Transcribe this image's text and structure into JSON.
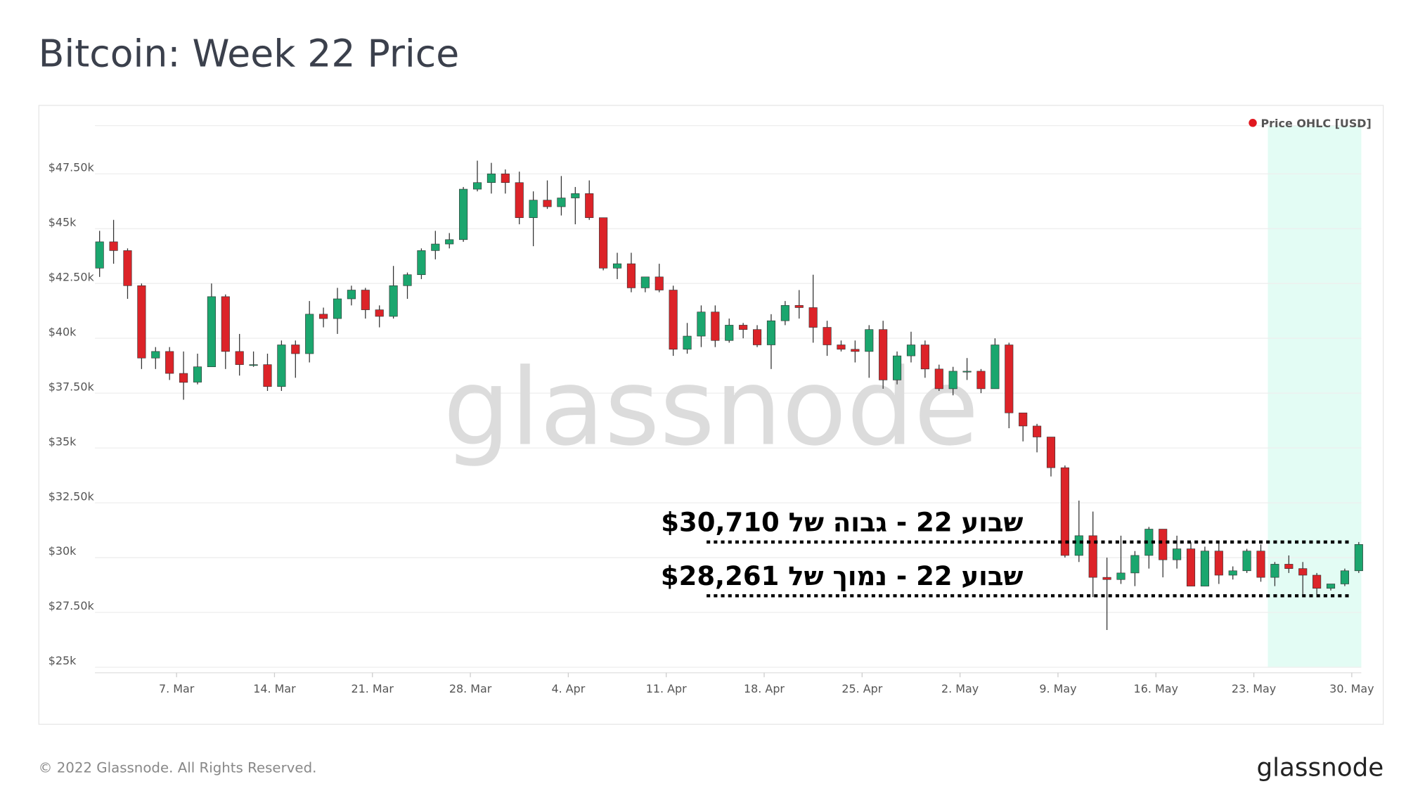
{
  "title": "Bitcoin: Week 22 Price",
  "footer": {
    "copyright": "© 2022 Glassnode. All Rights Reserved.",
    "logo": "glassnode"
  },
  "watermark": "glassnode",
  "chart_data": {
    "type": "candlestick",
    "legend": "Price OHLC [USD]",
    "legend_color": "#e0171f",
    "up_color": "#1ba66e",
    "down_color": "#dc2328",
    "highlight": {
      "from": 84,
      "to": 90,
      "color": "#e3fcf4"
    },
    "categories": [
      null,
      null,
      null,
      null,
      null,
      null,
      "7. Mar",
      null,
      null,
      null,
      null,
      null,
      null,
      "14. Mar",
      null,
      null,
      null,
      null,
      null,
      null,
      "21. Mar",
      null,
      null,
      null,
      null,
      null,
      null,
      "28. Mar",
      null,
      null,
      null,
      null,
      null,
      null,
      "4. Apr",
      null,
      null,
      null,
      null,
      null,
      null,
      "11. Apr",
      null,
      null,
      null,
      null,
      null,
      null,
      "18. Apr",
      null,
      null,
      null,
      null,
      null,
      null,
      "25. Apr",
      null,
      null,
      null,
      null,
      null,
      null,
      "2. May",
      null,
      null,
      null,
      null,
      null,
      null,
      "9. May",
      null,
      null,
      null,
      null,
      null,
      null,
      "16. May",
      null,
      null,
      null,
      null,
      null,
      null,
      "23. May",
      null,
      null,
      null,
      null,
      null,
      null,
      "30. May"
    ],
    "open": [
      43200,
      44400,
      44000,
      42400,
      39100,
      39400,
      38400,
      38000,
      38700,
      41900,
      39400,
      38800,
      38800,
      37800,
      39700,
      39300,
      41100,
      40900,
      41800,
      42200,
      41300,
      41000,
      42400,
      42900,
      44000,
      44300,
      44500,
      46800,
      47100,
      47500,
      47100,
      45500,
      46300,
      46000,
      46400,
      46600,
      45500,
      43200,
      43400,
      42300,
      42800,
      42200,
      39500,
      40100,
      41200,
      39900,
      40600,
      40400,
      39700,
      40800,
      41500,
      41400,
      40500,
      39700,
      39500,
      39400,
      40400,
      38100,
      39200,
      39700,
      38600,
      37700,
      38500,
      38500,
      37700,
      39700,
      36600,
      36000,
      35500,
      34100,
      30100,
      31000,
      29100,
      29000,
      29300,
      30100,
      31300,
      29900,
      30400,
      28700,
      30300,
      29200,
      29400,
      30300,
      29100,
      29700,
      29500,
      29200,
      28600,
      28800,
      29400
    ],
    "high": [
      44900,
      45400,
      44100,
      42500,
      39600,
      39600,
      39400,
      39300,
      42500,
      42000,
      40200,
      39400,
      39300,
      39900,
      39900,
      41700,
      41400,
      42300,
      42400,
      42300,
      41500,
      43300,
      43000,
      44100,
      44900,
      44800,
      46900,
      48100,
      48000,
      47700,
      47600,
      46700,
      47200,
      47400,
      46900,
      47200,
      45500,
      43900,
      43900,
      42800,
      43400,
      42400,
      40700,
      41500,
      41500,
      40900,
      40700,
      40600,
      41100,
      41700,
      42200,
      42900,
      40800,
      39900,
      39900,
      40600,
      40800,
      39400,
      40300,
      39900,
      38800,
      38700,
      39100,
      38600,
      40000,
      39800,
      36600,
      36100,
      35500,
      34200,
      32600,
      32100,
      30000,
      31000,
      30300,
      31400,
      31300,
      31000,
      30700,
      30500,
      30700,
      29600,
      30400,
      30600,
      29800,
      30100,
      29800,
      29300,
      28800,
      29500,
      30710
    ],
    "low": [
      42800,
      43400,
      41800,
      38600,
      38600,
      38100,
      37200,
      37900,
      38700,
      38600,
      38300,
      38700,
      37600,
      37600,
      38200,
      38900,
      40500,
      40200,
      41500,
      40900,
      40500,
      40900,
      41800,
      42700,
      43600,
      44100,
      44400,
      46700,
      46600,
      46600,
      45200,
      44200,
      45900,
      45600,
      45200,
      45400,
      43100,
      42700,
      42100,
      42100,
      42100,
      39200,
      39300,
      39600,
      39600,
      39800,
      40000,
      39600,
      38600,
      40600,
      40900,
      39800,
      39200,
      39400,
      38900,
      38200,
      37700,
      37900,
      38900,
      38200,
      37600,
      37400,
      38100,
      37500,
      37700,
      35900,
      35300,
      34800,
      33700,
      30000,
      29800,
      28200,
      26700,
      28800,
      28700,
      29500,
      29100,
      29500,
      28700,
      28700,
      28800,
      29000,
      29300,
      28900,
      28700,
      29300,
      28300,
      28300,
      28500,
      28700,
      29300
    ],
    "close": [
      44400,
      44000,
      42400,
      39100,
      39400,
      38400,
      37990,
      38700,
      41900,
      39400,
      38800,
      38800,
      37800,
      39700,
      39300,
      41100,
      40900,
      41800,
      42200,
      41300,
      41000,
      42400,
      42900,
      44000,
      44300,
      44500,
      46800,
      47100,
      47500,
      47100,
      45500,
      46300,
      46000,
      46400,
      46600,
      45500,
      43200,
      43400,
      42300,
      42800,
      42200,
      39500,
      40100,
      41200,
      39900,
      40600,
      40400,
      39700,
      40800,
      41500,
      41400,
      40500,
      39700,
      39500,
      39400,
      40400,
      38100,
      39200,
      39700,
      38600,
      37700,
      38500,
      38500,
      37700,
      39700,
      36600,
      36000,
      35500,
      34100,
      30100,
      31000,
      29100,
      29000,
      29300,
      30100,
      31300,
      29900,
      30400,
      28700,
      30300,
      29200,
      29400,
      30300,
      29100,
      29700,
      29500,
      29200,
      28600,
      28800,
      29400,
      30600
    ],
    "ylim": [
      24750,
      49700
    ],
    "yticks": [
      {
        "value": 25000,
        "label": "$25k"
      },
      {
        "value": 27500,
        "label": "$27.50k"
      },
      {
        "value": 30000,
        "label": "$30k"
      },
      {
        "value": 32500,
        "label": "$32.50k"
      },
      {
        "value": 35000,
        "label": "$35k"
      },
      {
        "value": 37500,
        "label": "$37.50k"
      },
      {
        "value": 40000,
        "label": "$40k"
      },
      {
        "value": 42500,
        "label": "$42.50k"
      },
      {
        "value": 45000,
        "label": "$45k"
      },
      {
        "value": 47500,
        "label": "$47.50k"
      }
    ],
    "grid": true,
    "annotations": [
      {
        "text": "שבוע 22 - גבוה של $30,710",
        "value": 30710
      },
      {
        "text": "שבוע 22 - נמוך של $28,261",
        "value": 28261
      }
    ]
  }
}
